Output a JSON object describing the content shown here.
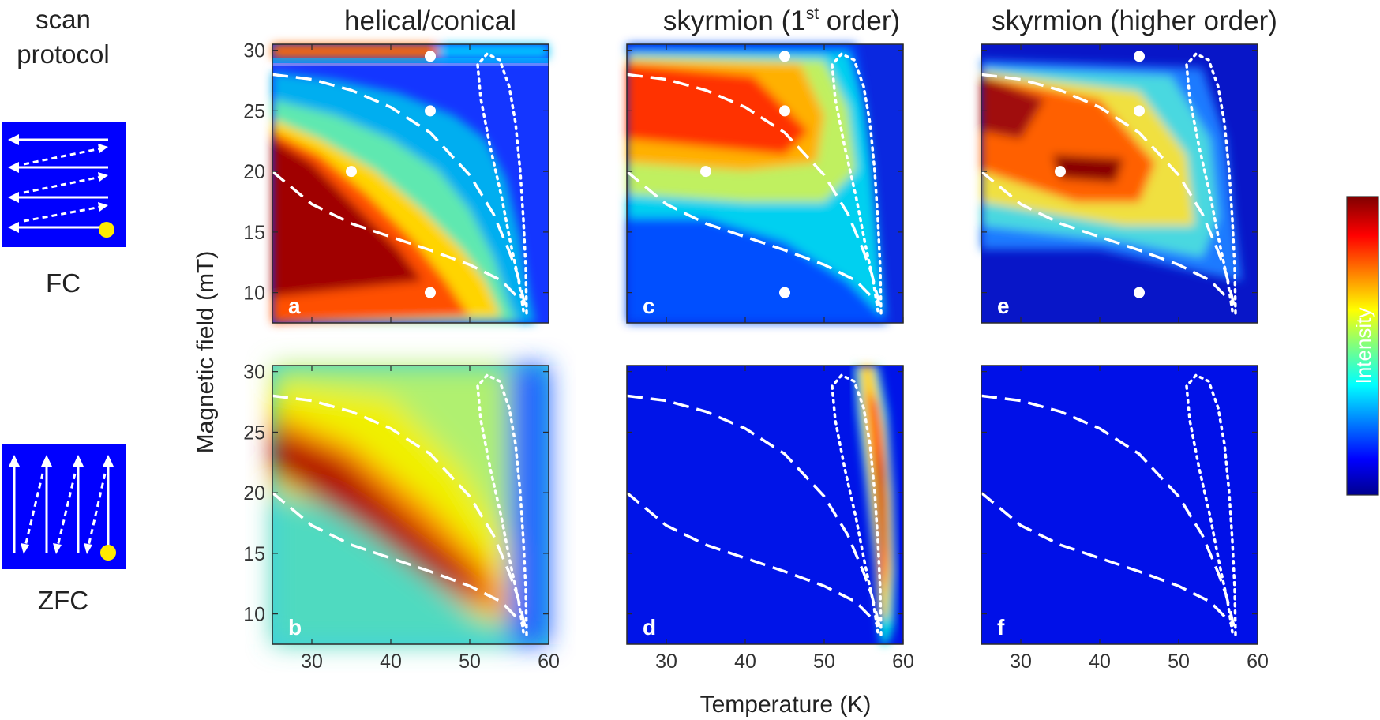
{
  "chart_data": {
    "type": "heatmap",
    "protocol_title": [
      "scan",
      "protocol"
    ],
    "protocols": [
      "FC",
      "ZFC"
    ],
    "column_titles": [
      {
        "text": "helical/conical"
      },
      {
        "text": "skyrmion (1",
        "sup": "st",
        "after": " order)"
      },
      {
        "text": "skyrmion (higher order)"
      }
    ],
    "xlabel": "Temperature (K)",
    "ylabel": "Magnetic field (mT)",
    "colorbar_label": "Intensity",
    "xlim": [
      25,
      60
    ],
    "ylim": [
      7.5,
      30.5
    ],
    "xticks": [
      30,
      40,
      50,
      60
    ],
    "yticks": [
      10,
      15,
      20,
      25,
      30
    ],
    "panel_labels": [
      "a",
      "b",
      "c",
      "d",
      "e",
      "f"
    ],
    "markers_FC": [
      {
        "T": 45,
        "B": 29.5
      },
      {
        "T": 45,
        "B": 25
      },
      {
        "T": 35,
        "B": 20
      },
      {
        "T": 45,
        "B": 10
      }
    ],
    "phase_boundaries": {
      "upper_dashed": [
        [
          25,
          28
        ],
        [
          30,
          27.6
        ],
        [
          35,
          26.7
        ],
        [
          40,
          25.3
        ],
        [
          45,
          23.2
        ],
        [
          50,
          19.7
        ],
        [
          53,
          16.5
        ],
        [
          55,
          13.4
        ],
        [
          56,
          11.6
        ],
        [
          57,
          9.0
        ]
      ],
      "lower_dashed": [
        [
          25,
          20
        ],
        [
          30,
          17.3
        ],
        [
          35,
          15.7
        ],
        [
          40,
          14.6
        ],
        [
          45,
          13.5
        ],
        [
          50,
          12.3
        ],
        [
          54,
          11.0
        ],
        [
          57,
          9.0
        ]
      ],
      "skyrmion_pocket_dotted": [
        [
          57.2,
          8.3
        ],
        [
          57.1,
          12
        ],
        [
          56.8,
          16
        ],
        [
          56.4,
          20
        ],
        [
          55.8,
          24
        ],
        [
          55.0,
          27
        ],
        [
          53.8,
          29.2
        ],
        [
          52.2,
          29.7
        ],
        [
          51.0,
          28.8
        ],
        [
          51.4,
          26
        ],
        [
          52.6,
          22
        ],
        [
          54.0,
          18
        ],
        [
          55.2,
          14
        ],
        [
          56.2,
          11
        ],
        [
          56.8,
          8.5
        ]
      ]
    }
  }
}
